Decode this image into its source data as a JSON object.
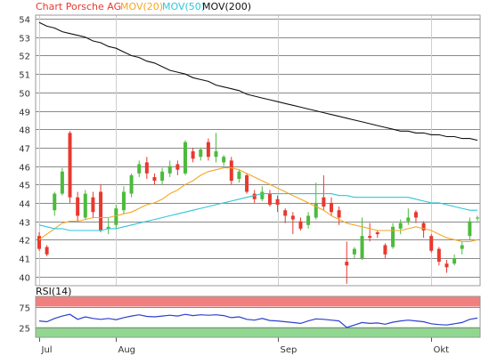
{
  "legend": [
    {
      "text": "Chart Porsche AG",
      "color": "#e8392f"
    },
    {
      "text": "MOV(20)",
      "color": "#f5a623"
    },
    {
      "text": "MOV(50)",
      "color": "#2ec6d8"
    },
    {
      "text": "MOV(200)",
      "color": "#111111"
    }
  ],
  "colors": {
    "up": "#4cbb3c",
    "down": "#e8392f",
    "rsi_line": "#2d3fd0",
    "rsi_overbought": "#f08080",
    "rsi_oversold": "#90d890"
  },
  "chart_data": [
    {
      "type": "candlestick",
      "title": "Chart Porsche AG",
      "ylim": [
        39.5,
        54.2
      ],
      "y_ticks": [
        40,
        41,
        42,
        43,
        44,
        45,
        46,
        47,
        48,
        49,
        50,
        51,
        52,
        53,
        54
      ],
      "x_ticks": [
        {
          "label": "Jul",
          "index": 0
        },
        {
          "label": "Aug",
          "index": 10
        },
        {
          "label": "Sep",
          "index": 31
        },
        {
          "label": "Okt",
          "index": 51
        }
      ],
      "candles": [
        [
          42.2,
          41.5,
          42.4,
          41.4
        ],
        [
          41.6,
          41.2,
          41.7,
          41.1
        ],
        [
          43.6,
          44.5,
          44.6,
          43.3
        ],
        [
          44.5,
          45.7,
          45.9,
          44.4
        ],
        [
          47.8,
          44.3,
          47.9,
          44.0
        ],
        [
          44.3,
          43.3,
          44.6,
          43.0
        ],
        [
          43.2,
          44.5,
          44.7,
          43.1
        ],
        [
          44.3,
          43.5,
          44.6,
          43.2
        ],
        [
          44.6,
          42.5,
          45.0,
          42.4
        ],
        [
          42.6,
          42.7,
          43.2,
          42.3
        ],
        [
          42.8,
          43.7,
          43.9,
          42.6
        ],
        [
          43.6,
          44.6,
          44.9,
          43.4
        ],
        [
          44.5,
          45.5,
          45.6,
          44.3
        ],
        [
          45.6,
          46.1,
          46.3,
          45.4
        ],
        [
          46.2,
          45.6,
          46.5,
          45.3
        ],
        [
          45.4,
          45.2,
          45.6,
          45.0
        ],
        [
          45.2,
          45.7,
          45.9,
          45.0
        ],
        [
          45.6,
          46.0,
          46.3,
          45.4
        ],
        [
          46.1,
          45.8,
          46.3,
          45.5
        ],
        [
          45.6,
          47.3,
          47.4,
          45.5
        ],
        [
          46.8,
          46.4,
          47.0,
          46.2
        ],
        [
          46.5,
          46.9,
          47.0,
          46.3
        ],
        [
          47.3,
          46.5,
          47.5,
          46.3
        ],
        [
          46.5,
          46.8,
          47.8,
          46.2
        ],
        [
          46.2,
          46.5,
          46.6,
          46.0
        ],
        [
          46.3,
          45.2,
          46.5,
          45.0
        ],
        [
          45.3,
          45.7,
          45.8,
          45.1
        ],
        [
          45.5,
          44.6,
          45.6,
          44.5
        ],
        [
          44.5,
          44.2,
          44.7,
          44.0
        ],
        [
          44.2,
          44.6,
          44.9,
          44.1
        ],
        [
          44.5,
          43.9,
          44.7,
          43.8
        ],
        [
          44.2,
          43.9,
          44.4,
          43.5
        ],
        [
          43.6,
          43.3,
          43.7,
          42.9
        ],
        [
          43.3,
          43.1,
          43.5,
          42.3
        ],
        [
          43.0,
          42.6,
          43.2,
          42.5
        ],
        [
          42.8,
          43.3,
          43.5,
          42.6
        ],
        [
          43.2,
          44.0,
          45.1,
          43.1
        ],
        [
          44.3,
          43.8,
          45.5,
          43.6
        ],
        [
          44.0,
          43.5,
          44.3,
          43.3
        ],
        [
          43.6,
          43.2,
          43.8,
          42.8
        ],
        [
          40.8,
          40.6,
          41.9,
          39.6
        ],
        [
          41.2,
          41.5,
          41.6,
          41.0
        ],
        [
          41.0,
          42.2,
          43.2,
          40.9
        ],
        [
          42.2,
          42.1,
          42.9,
          41.9
        ],
        [
          42.4,
          42.3,
          42.5,
          42.1
        ],
        [
          41.7,
          41.2,
          41.8,
          41.0
        ],
        [
          41.6,
          42.7,
          42.9,
          41.5
        ],
        [
          42.6,
          42.9,
          43.1,
          42.3
        ],
        [
          43.0,
          43.2,
          43.7,
          42.8
        ],
        [
          43.5,
          43.2,
          43.6,
          42.9
        ],
        [
          42.9,
          42.5,
          43.0,
          42.1
        ],
        [
          42.2,
          41.4,
          42.3,
          41.3
        ],
        [
          41.5,
          40.8,
          41.6,
          40.6
        ],
        [
          40.7,
          40.5,
          40.9,
          40.2
        ],
        [
          40.7,
          41.0,
          41.2,
          40.6
        ],
        [
          41.5,
          41.7,
          41.9,
          41.2
        ],
        [
          42.2,
          43.0,
          43.2,
          42.0
        ],
        [
          43.2,
          43.2,
          43.3,
          43.0
        ]
      ],
      "series": [
        {
          "name": "MOV(20)",
          "values": [
            42.0,
            42.3,
            42.6,
            42.9,
            43.0,
            43.0,
            43.1,
            43.2,
            43.2,
            43.2,
            43.3,
            43.4,
            43.5,
            43.7,
            43.9,
            44.0,
            44.2,
            44.5,
            44.7,
            45.0,
            45.2,
            45.5,
            45.7,
            45.8,
            45.9,
            45.9,
            45.8,
            45.6,
            45.4,
            45.2,
            45.0,
            44.8,
            44.6,
            44.4,
            44.2,
            44.0,
            43.8,
            43.6,
            43.3,
            43.1,
            42.9,
            42.8,
            42.7,
            42.6,
            42.5,
            42.5,
            42.5,
            42.5,
            42.6,
            42.7,
            42.6,
            42.5,
            42.3,
            42.1,
            42.0,
            41.9,
            41.9,
            42.0
          ]
        },
        {
          "name": "MOV(50)",
          "values": [
            42.8,
            42.7,
            42.6,
            42.6,
            42.5,
            42.5,
            42.5,
            42.5,
            42.5,
            42.6,
            42.6,
            42.7,
            42.8,
            42.9,
            43.0,
            43.1,
            43.2,
            43.3,
            43.4,
            43.5,
            43.6,
            43.7,
            43.8,
            43.9,
            44.0,
            44.1,
            44.2,
            44.3,
            44.4,
            44.5,
            44.5,
            44.5,
            44.5,
            44.5,
            44.5,
            44.5,
            44.5,
            44.5,
            44.5,
            44.4,
            44.4,
            44.3,
            44.3,
            44.3,
            44.3,
            44.3,
            44.3,
            44.3,
            44.3,
            44.2,
            44.1,
            44.0,
            44.0,
            43.9,
            43.8,
            43.7,
            43.6,
            43.6
          ]
        },
        {
          "name": "MOV(200)",
          "values": [
            53.8,
            53.6,
            53.5,
            53.3,
            53.2,
            53.1,
            53.0,
            52.8,
            52.7,
            52.5,
            52.4,
            52.2,
            52.0,
            51.9,
            51.7,
            51.6,
            51.4,
            51.2,
            51.1,
            51.0,
            50.8,
            50.7,
            50.6,
            50.4,
            50.3,
            50.2,
            50.1,
            49.9,
            49.8,
            49.7,
            49.6,
            49.5,
            49.4,
            49.3,
            49.2,
            49.1,
            49.0,
            48.9,
            48.8,
            48.7,
            48.6,
            48.5,
            48.4,
            48.3,
            48.2,
            48.1,
            48.0,
            47.9,
            47.9,
            47.8,
            47.8,
            47.7,
            47.7,
            47.6,
            47.6,
            47.5,
            47.5,
            47.4
          ]
        }
      ]
    },
    {
      "type": "line",
      "title": "RSI(14)",
      "ylim": [
        0,
        100
      ],
      "y_ticks": [
        25,
        75
      ],
      "bands": [
        {
          "name": "overbought",
          "from": 75,
          "to": 100
        },
        {
          "name": "oversold",
          "from": 0,
          "to": 25
        }
      ],
      "series": [
        {
          "name": "RSI(14)",
          "values": [
            40,
            38,
            46,
            52,
            56,
            44,
            50,
            46,
            44,
            46,
            43,
            48,
            52,
            55,
            51,
            50,
            52,
            54,
            52,
            56,
            53,
            55,
            54,
            55,
            53,
            48,
            50,
            44,
            42,
            46,
            41,
            40,
            38,
            36,
            34,
            40,
            45,
            44,
            42,
            40,
            24,
            30,
            36,
            34,
            35,
            32,
            37,
            40,
            42,
            40,
            38,
            33,
            31,
            30,
            33,
            36,
            44,
            47
          ]
        }
      ]
    }
  ]
}
